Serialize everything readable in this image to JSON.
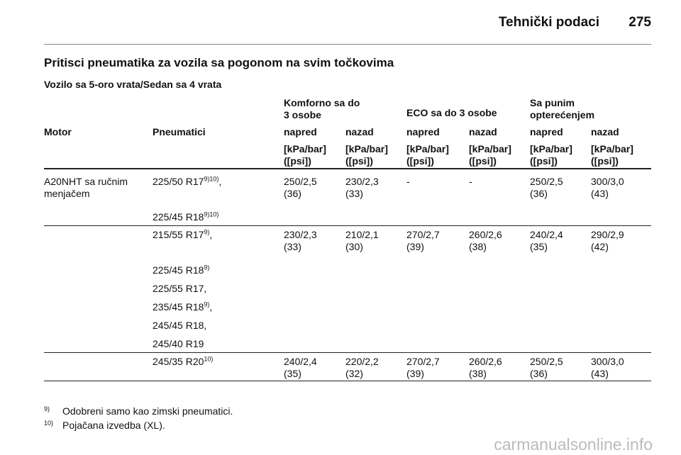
{
  "header": {
    "title": "Tehnički podaci",
    "page": "275"
  },
  "section_title": "Pritisci pneumatika za vozila sa pogonom na svim točkovima",
  "subtitle": "Vozilo sa 5-oro vrata/Sedan sa 4 vrata",
  "table": {
    "group_headers": [
      "Komforno sa do\n3 osobe",
      "ECO sa do 3 osobe",
      "Sa punim\nopterećenjem"
    ],
    "columns": [
      "Motor",
      "Pneumatici",
      "napred",
      "nazad",
      "napred",
      "nazad",
      "napred",
      "nazad"
    ],
    "units": [
      "[kPa/bar]\n([psi])",
      "[kPa/bar]\n([psi])",
      "[kPa/bar]\n([psi])",
      "[kPa/bar]\n([psi])",
      "[kPa/bar]\n([psi])",
      "[kPa/bar]\n([psi])"
    ],
    "groups": [
      {
        "motor": "A20NHT sa ručnim\nmenjačem",
        "tires": [
          {
            "name": "225/50 R17",
            "note": "9)10)",
            "trail": ","
          },
          {
            "name": "225/45 R18",
            "note": "9)10)"
          }
        ],
        "values": [
          "250/2,5\n(36)",
          "230/2,3\n(33)",
          "-",
          "-",
          "250/2,5\n(36)",
          "300/3,0\n(43)"
        ]
      },
      {
        "tires": [
          {
            "name": "215/55 R17",
            "note": "9)",
            "trail": ","
          },
          {
            "name": "225/45 R18",
            "note": "9)"
          },
          {
            "name": "225/55 R17,"
          },
          {
            "name": "235/45 R18",
            "note": "9)",
            "trail": ","
          },
          {
            "name": "245/45 R18,"
          },
          {
            "name": "245/40 R19"
          }
        ],
        "values": [
          "230/2,3\n(33)",
          "210/2,1\n(30)",
          "270/2,7\n(39)",
          "260/2,6\n(38)",
          "240/2,4\n(35)",
          "290/2,9\n(42)"
        ]
      },
      {
        "tires": [
          {
            "name": "245/35 R20",
            "note": "10)"
          }
        ],
        "values": [
          "240/2,4\n(35)",
          "220/2,2\n(32)",
          "270/2,7\n(39)",
          "260/2,6\n(38)",
          "250/2,5\n(36)",
          "300/3,0\n(43)"
        ]
      }
    ]
  },
  "footnotes": [
    {
      "mark": "9)",
      "text": "Odobreni samo kao zimski pneumatici."
    },
    {
      "mark": "10)",
      "text": "Pojačana izvedba (XL)."
    }
  ],
  "watermark": "carmanualsonline.info"
}
